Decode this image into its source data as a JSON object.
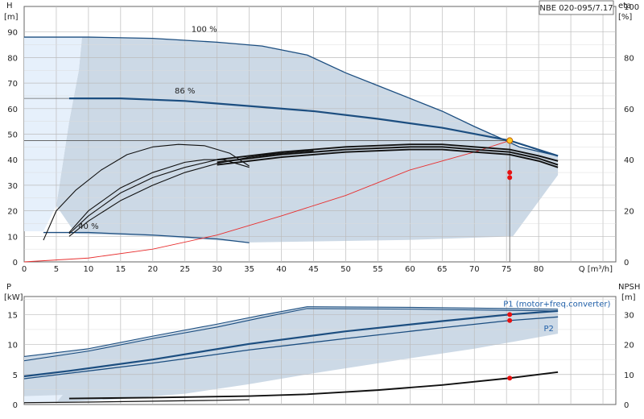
{
  "title_box": "NBE 020-095/7.17",
  "chart_data": [
    {
      "type": "line",
      "panel": "head",
      "ylabel_left": [
        "H",
        "[m]"
      ],
      "ylabel_right": [
        "eta",
        "[%]"
      ],
      "xlabel": "Q [m³/h]",
      "xlim": [
        0,
        92
      ],
      "ylim": [
        0,
        100
      ],
      "eta_lim": [
        0,
        100
      ],
      "xticks": [
        0,
        5,
        10,
        15,
        20,
        25,
        30,
        35,
        40,
        45,
        50,
        55,
        60,
        65,
        70,
        75,
        80
      ],
      "yticks_left": [
        0,
        10,
        20,
        30,
        40,
        50,
        60,
        70,
        80,
        90
      ],
      "yticks_right": [
        0,
        20,
        40,
        60,
        80,
        100
      ],
      "grid": true,
      "annotations": [
        {
          "text": "100 %",
          "x": 28,
          "y": 90
        },
        {
          "text": "86 %",
          "x": 25,
          "y": 66
        },
        {
          "text": "40 %",
          "x": 10,
          "y": 13
        }
      ],
      "operating_point": {
        "x": 75.5,
        "y": 47.5
      },
      "series": [
        {
          "role": "head",
          "values": [
            [
              0,
              88
            ],
            [
              10,
              88
            ],
            [
              20,
              87.5
            ],
            [
              30,
              86
            ],
            [
              37,
              84.5
            ],
            [
              44,
              81
            ],
            [
              50,
              74
            ],
            [
              55,
              69
            ],
            [
              60,
              64
            ],
            [
              65,
              59
            ],
            [
              70,
              53
            ],
            [
              74,
              48.5
            ],
            [
              77,
              45
            ],
            [
              83,
              41.5
            ]
          ]
        },
        {
          "role": "head",
          "values": [
            [
              7,
              64
            ],
            [
              15,
              64
            ],
            [
              25,
              63
            ],
            [
              35,
              61
            ],
            [
              45,
              59
            ],
            [
              55,
              56
            ],
            [
              65,
              52.5
            ],
            [
              75.5,
              47.5
            ],
            [
              83,
              41.5
            ]
          ]
        },
        {
          "role": "head",
          "values": [
            [
              3,
              11.5
            ],
            [
              10,
              11.5
            ],
            [
              20,
              10.5
            ],
            [
              30,
              9
            ],
            [
              35,
              7.5
            ]
          ]
        },
        {
          "role": "system",
          "values": [
            [
              0,
              0
            ],
            [
              10,
              1.5
            ],
            [
              20,
              5
            ],
            [
              30,
              10.5
            ],
            [
              40,
              18
            ],
            [
              50,
              26
            ],
            [
              60,
              36
            ],
            [
              70,
              43
            ],
            [
              75.5,
              47.5
            ]
          ]
        },
        {
          "role": "eta",
          "values": [
            [
              3,
              8.5
            ],
            [
              5,
              20
            ],
            [
              8,
              28
            ],
            [
              12,
              36
            ],
            [
              16,
              42
            ],
            [
              20,
              45
            ],
            [
              24,
              46
            ],
            [
              28,
              45.5
            ],
            [
              32,
              42.5
            ],
            [
              35,
              37.5
            ]
          ]
        },
        {
          "role": "eta",
          "values": [
            [
              7,
              10
            ],
            [
              10,
              16
            ],
            [
              15,
              24
            ],
            [
              20,
              30
            ],
            [
              25,
              35
            ],
            [
              30,
              38.5
            ],
            [
              35,
              41
            ],
            [
              40,
              42.5
            ],
            [
              45,
              43.5
            ]
          ]
        },
        {
          "role": "eta",
          "values": [
            [
              7,
              11
            ],
            [
              10,
              18
            ],
            [
              15,
              27
            ],
            [
              20,
              33
            ],
            [
              25,
              37
            ],
            [
              30,
              40
            ],
            [
              35,
              41.5
            ],
            [
              40,
              42.5
            ],
            [
              45,
              43.5
            ]
          ]
        },
        {
          "role": "eta",
          "values": [
            [
              7,
              11.5
            ],
            [
              10,
              20
            ],
            [
              15,
              29
            ],
            [
              20,
              35
            ],
            [
              25,
              39
            ],
            [
              28,
              40
            ],
            [
              31,
              40
            ],
            [
              35,
              37
            ]
          ]
        },
        {
          "role": "eta",
          "values": [
            [
              30,
              40
            ],
            [
              40,
              43
            ],
            [
              50,
              45
            ],
            [
              60,
              46
            ],
            [
              65,
              46
            ],
            [
              70,
              45
            ],
            [
              75.5,
              44
            ],
            [
              80,
              41.5
            ],
            [
              83,
              39.5
            ]
          ]
        },
        {
          "role": "eta",
          "values": [
            [
              30,
              39
            ],
            [
              40,
              42
            ],
            [
              50,
              44
            ],
            [
              60,
              45
            ],
            [
              65,
              45
            ],
            [
              70,
              44
            ],
            [
              75.5,
              43
            ],
            [
              80,
              40.5
            ],
            [
              83,
              38
            ]
          ]
        },
        {
          "role": "eta",
          "values": [
            [
              30,
              38
            ],
            [
              40,
              41
            ],
            [
              50,
              43
            ],
            [
              60,
              44
            ],
            [
              65,
              44
            ],
            [
              70,
              43
            ],
            [
              75.5,
              42
            ],
            [
              80,
              39.5
            ],
            [
              83,
              37
            ]
          ]
        }
      ],
      "markers": [
        {
          "x": 75.5,
          "y": 35
        },
        {
          "x": 75.5,
          "y": 33
        }
      ]
    },
    {
      "type": "line",
      "panel": "power",
      "ylabel_left": [
        "P",
        "[kW]"
      ],
      "ylabel_right": [
        "NPSH",
        "[m]"
      ],
      "xlim": [
        0,
        92
      ],
      "ylim": [
        0,
        18
      ],
      "npsh_lim": [
        0,
        36
      ],
      "yticks_left": [
        0,
        5,
        10,
        15
      ],
      "yticks_right": [
        0,
        10,
        20,
        30
      ],
      "grid": true,
      "series": [
        {
          "role": "power",
          "name": "P1 (motor+freq.converter)",
          "values": [
            [
              0,
              4.7
            ],
            [
              7,
              5.6
            ],
            [
              20,
              7.5
            ],
            [
              35,
              10.1
            ],
            [
              50,
              12.2
            ],
            [
              65,
              13.9
            ],
            [
              75.5,
              15
            ],
            [
              83,
              15.6
            ]
          ]
        },
        {
          "role": "power",
          "name": "P2",
          "values": [
            [
              0,
              4.3
            ],
            [
              7,
              5.2
            ],
            [
              20,
              6.9
            ],
            [
              35,
              9.1
            ],
            [
              50,
              11
            ],
            [
              65,
              12.8
            ],
            [
              75.5,
              14
            ],
            [
              83,
              14.6
            ]
          ]
        },
        {
          "role": "power",
          "values": [
            [
              0,
              7.3
            ],
            [
              10,
              8.9
            ],
            [
              20,
              11
            ],
            [
              30,
              12.9
            ],
            [
              37,
              14.5
            ],
            [
              44,
              16
            ],
            [
              60,
              15.9
            ],
            [
              83,
              15.6
            ]
          ]
        },
        {
          "role": "power",
          "values": [
            [
              0,
              8
            ],
            [
              10,
              9.3
            ],
            [
              20,
              11.4
            ],
            [
              30,
              13.4
            ],
            [
              37,
              14.9
            ],
            [
              44,
              16.3
            ],
            [
              60,
              16.2
            ],
            [
              83,
              15.9
            ]
          ]
        },
        {
          "role": "power",
          "values": [
            [
              0,
              0.3
            ],
            [
              10,
              0.4
            ],
            [
              20,
              0.55
            ],
            [
              30,
              0.7
            ],
            [
              35,
              0.8
            ]
          ]
        },
        {
          "role": "npsh",
          "values": [
            [
              7,
              2
            ],
            [
              20,
              2.3
            ],
            [
              35,
              2.8
            ],
            [
              44,
              3.4
            ],
            [
              55,
              4.8
            ],
            [
              65,
              6.5
            ],
            [
              75.5,
              8.8
            ],
            [
              83,
              10.8
            ]
          ]
        }
      ],
      "markers": [
        {
          "x": 75.5,
          "y": 15
        },
        {
          "x": 75.5,
          "y": 14
        },
        {
          "x": 75.5,
          "y": 4.5
        }
      ]
    }
  ]
}
